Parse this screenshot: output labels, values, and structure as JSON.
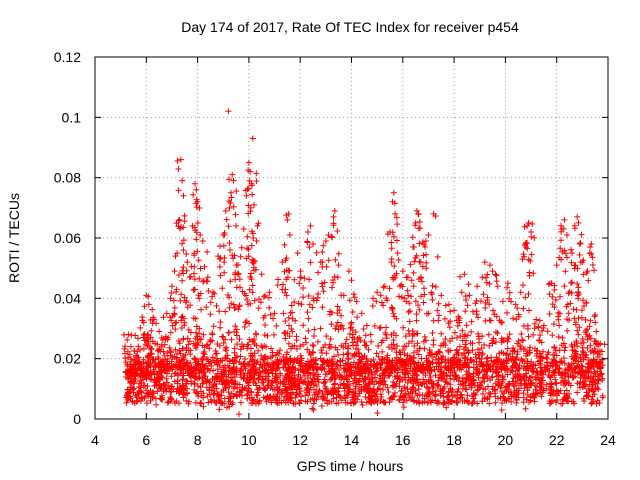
{
  "chart_data": {
    "type": "scatter",
    "title": "Day 174 of 2017, Rate Of TEC Index for receiver p454",
    "xlabel": "GPS time / hours",
    "ylabel": "ROTI / TECUs",
    "xlim": [
      4,
      24
    ],
    "ylim": [
      0,
      0.12
    ],
    "xticks": [
      {
        "value": 4,
        "label": "4"
      },
      {
        "value": 6,
        "label": "6"
      },
      {
        "value": 8,
        "label": "8"
      },
      {
        "value": 10,
        "label": "10"
      },
      {
        "value": 12,
        "label": "12"
      },
      {
        "value": 14,
        "label": "14"
      },
      {
        "value": 16,
        "label": "16"
      },
      {
        "value": 18,
        "label": "18"
      },
      {
        "value": 20,
        "label": "20"
      },
      {
        "value": 22,
        "label": "22"
      },
      {
        "value": 24,
        "label": "24"
      }
    ],
    "yticks": [
      {
        "value": 0,
        "label": "0"
      },
      {
        "value": 0.02,
        "label": "0.02"
      },
      {
        "value": 0.04,
        "label": "0.04"
      },
      {
        "value": 0.06,
        "label": "0.06"
      },
      {
        "value": 0.08,
        "label": "0.08"
      },
      {
        "value": 0.1,
        "label": "0.1"
      },
      {
        "value": 0.12,
        "label": "0.12"
      }
    ],
    "grid": true,
    "series": [
      {
        "name": "ROTI",
        "color": "#ff0000",
        "marker": "plus",
        "x_range": [
          5.2,
          23.8
        ],
        "baseline_min": 0.005,
        "baseline_max": 0.02,
        "points": [
          [
            5.3,
            0.028
          ],
          [
            5.4,
            0.024
          ],
          [
            5.6,
            0.021
          ],
          [
            5.9,
            0.032
          ],
          [
            6.0,
            0.041
          ],
          [
            6.1,
            0.038
          ],
          [
            6.3,
            0.033
          ],
          [
            6.5,
            0.029
          ],
          [
            6.8,
            0.035
          ],
          [
            7.0,
            0.044
          ],
          [
            7.1,
            0.049
          ],
          [
            7.2,
            0.055
          ],
          [
            7.3,
            0.066
          ],
          [
            7.35,
            0.086
          ],
          [
            7.4,
            0.079
          ],
          [
            7.45,
            0.074
          ],
          [
            7.6,
            0.052
          ],
          [
            7.8,
            0.064
          ],
          [
            7.9,
            0.078
          ],
          [
            7.95,
            0.076
          ],
          [
            8.0,
            0.072
          ],
          [
            8.1,
            0.061
          ],
          [
            8.2,
            0.059
          ],
          [
            8.4,
            0.047
          ],
          [
            8.6,
            0.042
          ],
          [
            8.8,
            0.054
          ],
          [
            9.0,
            0.061
          ],
          [
            9.1,
            0.069
          ],
          [
            9.2,
            0.102
          ],
          [
            9.3,
            0.075
          ],
          [
            9.35,
            0.081
          ],
          [
            9.4,
            0.079
          ],
          [
            9.5,
            0.064
          ],
          [
            9.6,
            0.048
          ],
          [
            9.8,
            0.063
          ],
          [
            9.9,
            0.074
          ],
          [
            10.0,
            0.085
          ],
          [
            10.05,
            0.082
          ],
          [
            10.1,
            0.078
          ],
          [
            10.15,
            0.093
          ],
          [
            10.2,
            0.071
          ],
          [
            10.3,
            0.059
          ],
          [
            10.5,
            0.048
          ],
          [
            10.8,
            0.042
          ],
          [
            11.0,
            0.035
          ],
          [
            11.3,
            0.052
          ],
          [
            11.5,
            0.066
          ],
          [
            11.55,
            0.068
          ],
          [
            11.6,
            0.061
          ],
          [
            11.9,
            0.055
          ],
          [
            12.0,
            0.047
          ],
          [
            12.3,
            0.062
          ],
          [
            12.4,
            0.064
          ],
          [
            12.5,
            0.058
          ],
          [
            12.8,
            0.052
          ],
          [
            13.0,
            0.059
          ],
          [
            13.1,
            0.061
          ],
          [
            13.3,
            0.067
          ],
          [
            13.35,
            0.069
          ],
          [
            13.5,
            0.051
          ],
          [
            13.7,
            0.041
          ],
          [
            13.9,
            0.049
          ],
          [
            14.0,
            0.046
          ],
          [
            14.2,
            0.039
          ],
          [
            14.4,
            0.035
          ],
          [
            14.6,
            0.031
          ],
          [
            15.0,
            0.042
          ],
          [
            15.3,
            0.044
          ],
          [
            15.5,
            0.062
          ],
          [
            15.6,
            0.072
          ],
          [
            15.65,
            0.075
          ],
          [
            15.7,
            0.068
          ],
          [
            15.8,
            0.055
          ],
          [
            16.0,
            0.049
          ],
          [
            16.2,
            0.047
          ],
          [
            16.4,
            0.057
          ],
          [
            16.5,
            0.065
          ],
          [
            16.55,
            0.069
          ],
          [
            16.6,
            0.068
          ],
          [
            16.7,
            0.052
          ],
          [
            16.9,
            0.059
          ],
          [
            17.0,
            0.061
          ],
          [
            17.2,
            0.068
          ],
          [
            17.5,
            0.041
          ],
          [
            17.8,
            0.038
          ],
          [
            18.0,
            0.036
          ],
          [
            18.3,
            0.042
          ],
          [
            18.4,
            0.048
          ],
          [
            18.6,
            0.041
          ],
          [
            18.9,
            0.044
          ],
          [
            19.1,
            0.047
          ],
          [
            19.2,
            0.052
          ],
          [
            19.4,
            0.051
          ],
          [
            19.5,
            0.049
          ],
          [
            19.7,
            0.044
          ],
          [
            19.9,
            0.039
          ],
          [
            20.1,
            0.045
          ],
          [
            20.4,
            0.038
          ],
          [
            20.6,
            0.042
          ],
          [
            20.8,
            0.057
          ],
          [
            20.85,
            0.064
          ],
          [
            20.9,
            0.065
          ],
          [
            21.0,
            0.062
          ],
          [
            21.2,
            0.033
          ],
          [
            21.5,
            0.031
          ],
          [
            21.8,
            0.045
          ],
          [
            22.0,
            0.051
          ],
          [
            22.2,
            0.063
          ],
          [
            22.3,
            0.066
          ],
          [
            22.4,
            0.061
          ],
          [
            22.6,
            0.055
          ],
          [
            22.7,
            0.064
          ],
          [
            22.8,
            0.067
          ],
          [
            22.85,
            0.065
          ],
          [
            22.9,
            0.058
          ],
          [
            23.0,
            0.052
          ],
          [
            23.2,
            0.049
          ],
          [
            23.3,
            0.057
          ],
          [
            23.35,
            0.058
          ],
          [
            23.5,
            0.032
          ],
          [
            23.7,
            0.025
          ]
        ]
      }
    ]
  }
}
